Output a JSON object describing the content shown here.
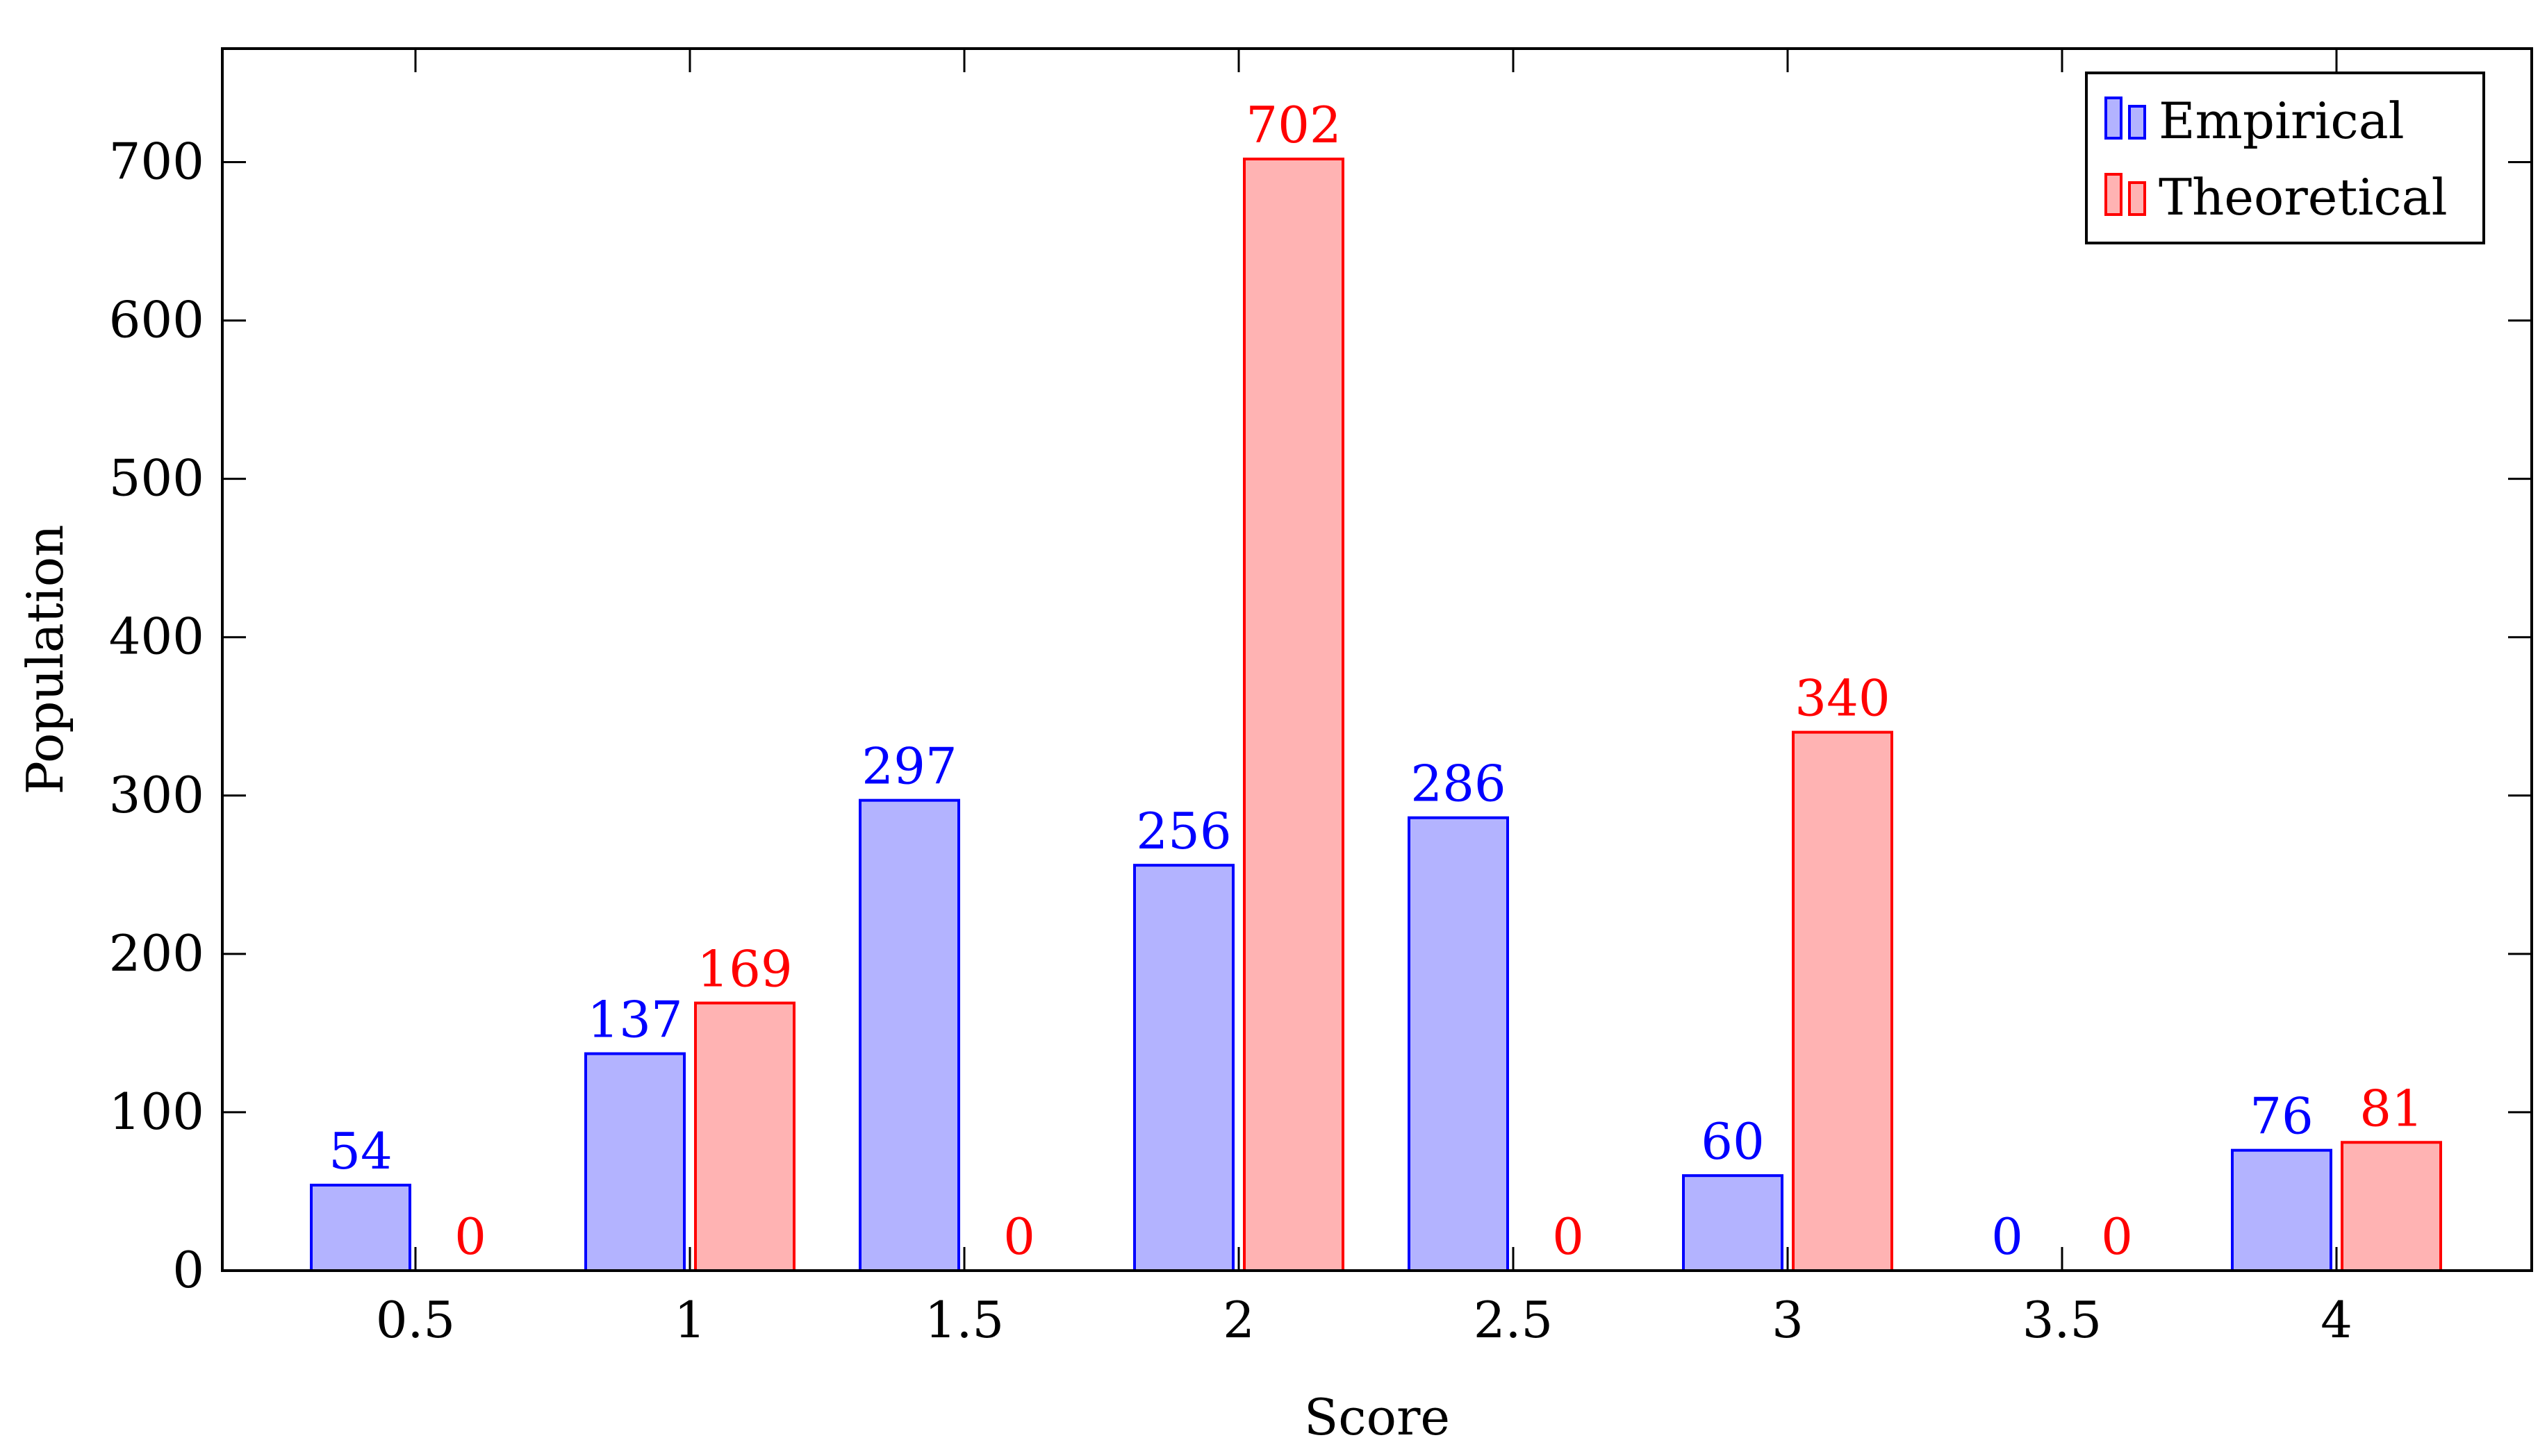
{
  "chart_data": {
    "type": "bar",
    "xlabel": "Score",
    "ylabel": "Population",
    "categories": [
      "0.5",
      "1",
      "1.5",
      "2",
      "2.5",
      "3",
      "3.5",
      "4"
    ],
    "series": [
      {
        "name": "Empirical",
        "values": [
          54,
          137,
          297,
          256,
          286,
          60,
          0,
          76
        ],
        "fill": "#b3b3ff",
        "stroke": "#0000ff",
        "label_color": "#0000ff"
      },
      {
        "name": "Theoretical",
        "values": [
          0,
          169,
          0,
          702,
          0,
          340,
          0,
          81
        ],
        "fill": "#ffb3b3",
        "stroke": "#ff0000",
        "label_color": "#ff0000"
      }
    ],
    "x_ticks": [
      "0.5",
      "1",
      "1.5",
      "2",
      "2.5",
      "3",
      "3.5",
      "4"
    ],
    "y_ticks": [
      0,
      100,
      200,
      300,
      400,
      500,
      600,
      700
    ],
    "ylim": [
      0,
      702
    ],
    "grid": false,
    "legend_position": "top-right"
  }
}
